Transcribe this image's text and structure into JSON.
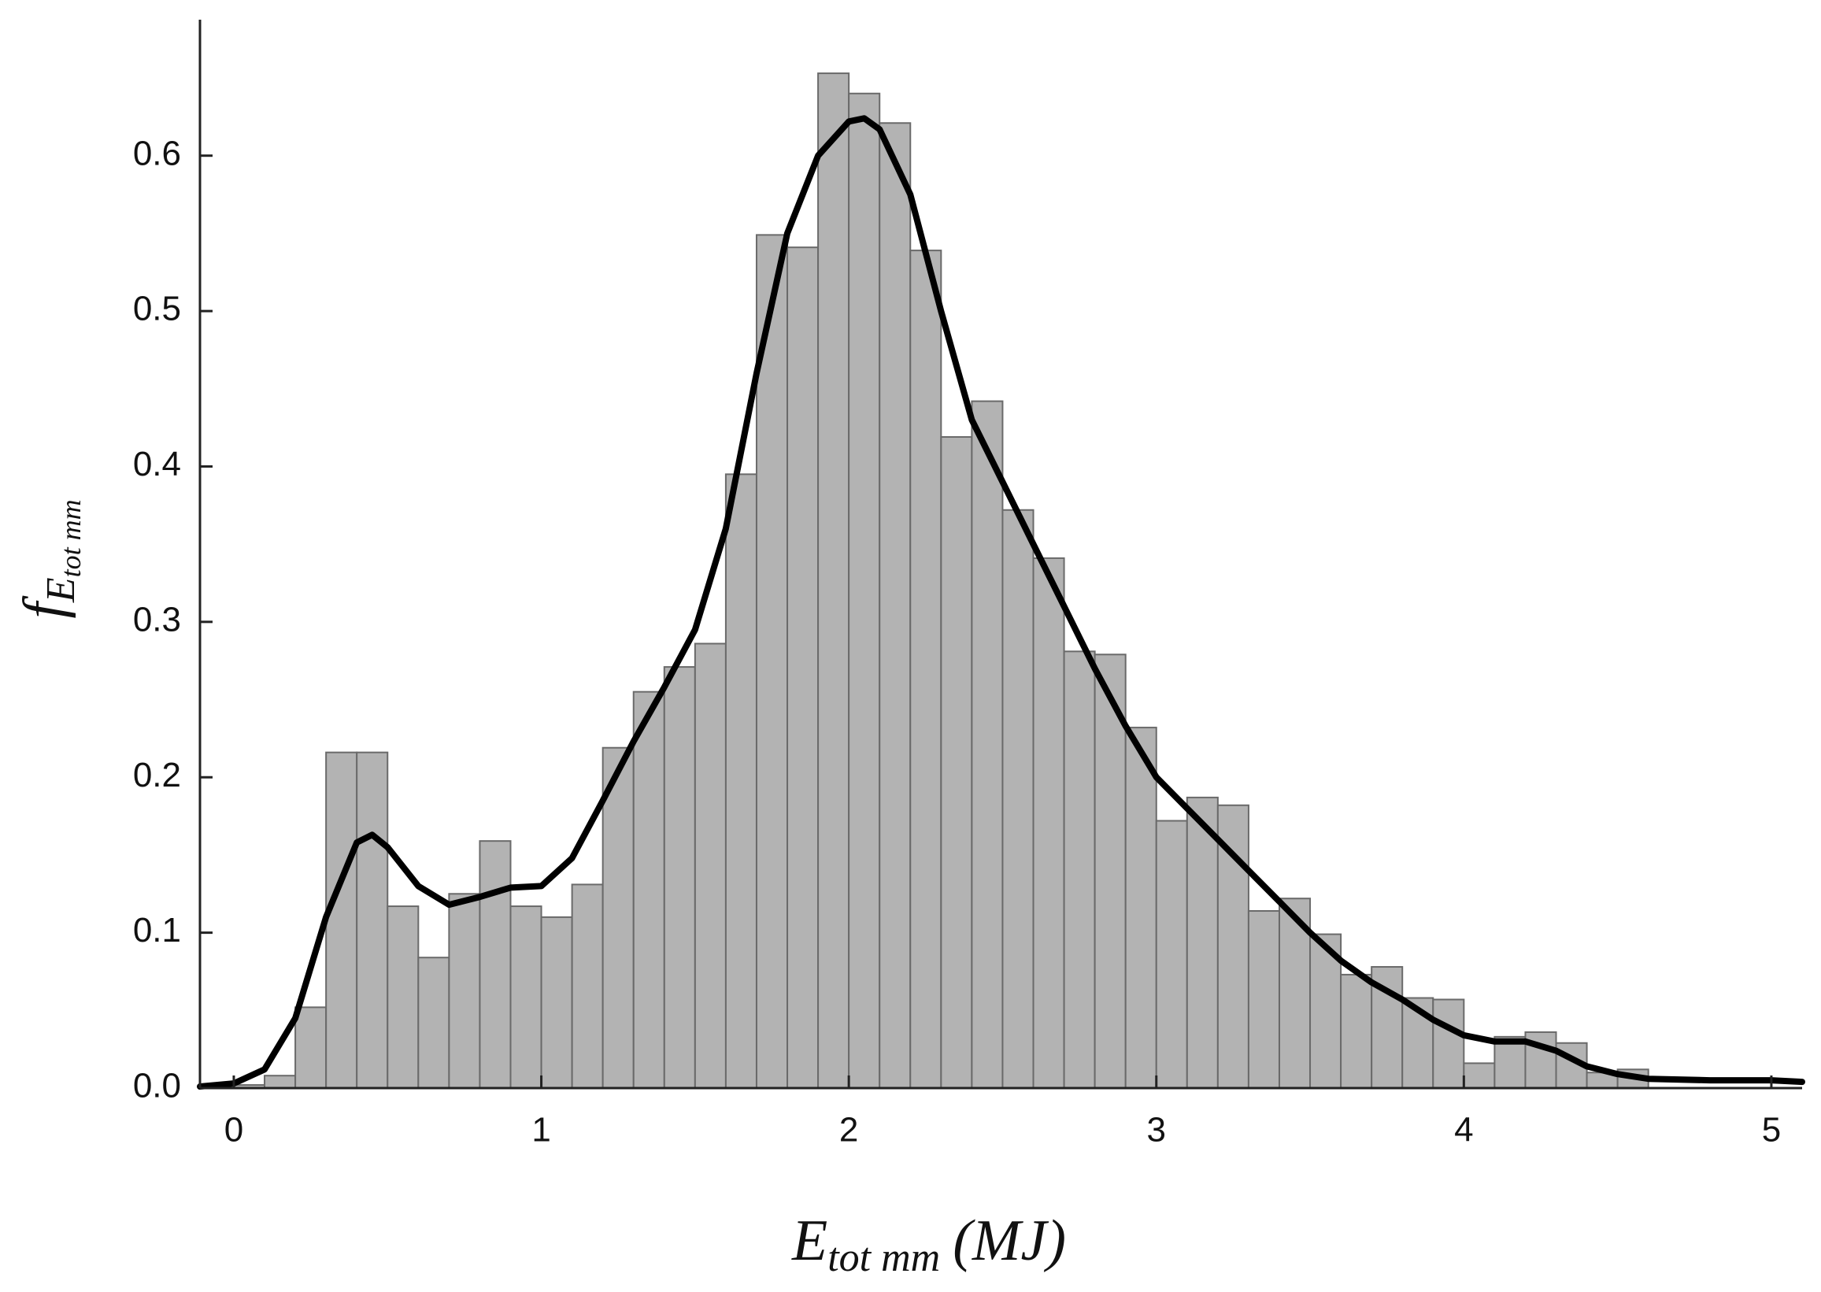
{
  "chart_data": {
    "type": "histogram",
    "bins": [
      0,
      0.1,
      0.2,
      0.3,
      0.4,
      0.5,
      0.6,
      0.7,
      0.8,
      0.9,
      1.0,
      1.1,
      1.2,
      1.3,
      1.4,
      1.5,
      1.6,
      1.7,
      1.8,
      1.9,
      2.0,
      2.1,
      2.2,
      2.3,
      2.4,
      2.5,
      2.6,
      2.7,
      2.8,
      2.9,
      3.0,
      3.1,
      3.2,
      3.3,
      3.4,
      3.5,
      3.6,
      3.7,
      3.8,
      3.9,
      4.0,
      4.1,
      4.2,
      4.3,
      4.4,
      4.5,
      4.6
    ],
    "values": [
      0.002,
      0.008,
      0.052,
      0.216,
      0.216,
      0.117,
      0.084,
      0.125,
      0.159,
      0.117,
      0.11,
      0.131,
      0.219,
      0.255,
      0.271,
      0.286,
      0.395,
      0.549,
      0.541,
      0.653,
      0.64,
      0.621,
      0.539,
      0.419,
      0.442,
      0.372,
      0.341,
      0.281,
      0.279,
      0.232,
      0.172,
      0.187,
      0.182,
      0.114,
      0.122,
      0.099,
      0.073,
      0.078,
      0.058,
      0.057,
      0.016,
      0.033,
      0.036,
      0.029,
      0.01,
      0.012
    ],
    "color": "#b3b3b3",
    "curve": {
      "type": "line",
      "color": "#000000",
      "x": [
        -0.11,
        0,
        0.1,
        0.2,
        0.3,
        0.4,
        0.45,
        0.5,
        0.6,
        0.7,
        0.8,
        0.9,
        1.0,
        1.1,
        1.2,
        1.3,
        1.4,
        1.5,
        1.6,
        1.7,
        1.8,
        1.9,
        2.0,
        2.05,
        2.1,
        2.2,
        2.3,
        2.4,
        2.5,
        2.6,
        2.7,
        2.8,
        2.9,
        3.0,
        3.1,
        3.2,
        3.3,
        3.4,
        3.5,
        3.6,
        3.7,
        3.8,
        3.9,
        4.0,
        4.1,
        4.2,
        4.3,
        4.4,
        4.5,
        4.6,
        4.8,
        5.0,
        5.1
      ],
      "values": [
        0.001,
        0.003,
        0.012,
        0.045,
        0.11,
        0.158,
        0.163,
        0.155,
        0.13,
        0.118,
        0.123,
        0.129,
        0.13,
        0.148,
        0.185,
        0.223,
        0.258,
        0.295,
        0.36,
        0.46,
        0.55,
        0.6,
        0.622,
        0.624,
        0.617,
        0.575,
        0.5,
        0.43,
        0.39,
        0.35,
        0.31,
        0.27,
        0.233,
        0.2,
        0.18,
        0.16,
        0.14,
        0.12,
        0.1,
        0.082,
        0.068,
        0.057,
        0.044,
        0.034,
        0.03,
        0.03,
        0.024,
        0.014,
        0.009,
        0.006,
        0.005,
        0.005,
        0.004
      ]
    },
    "xlabel": {
      "main": "E",
      "sub": "tot mm",
      "unit": "(MJ)"
    },
    "ylabel": {
      "main": "f",
      "sub": "E",
      "subsub": "tot mm"
    },
    "xlim": [
      -0.11,
      5.1
    ],
    "ylim": [
      0,
      0.6875
    ],
    "xticks": [
      0,
      1,
      2,
      3,
      4,
      5
    ],
    "yticks": [
      {
        "value": 0,
        "label": "0.0"
      },
      0.1,
      0.2,
      0.3,
      0.4,
      0.5,
      0.6
    ]
  }
}
